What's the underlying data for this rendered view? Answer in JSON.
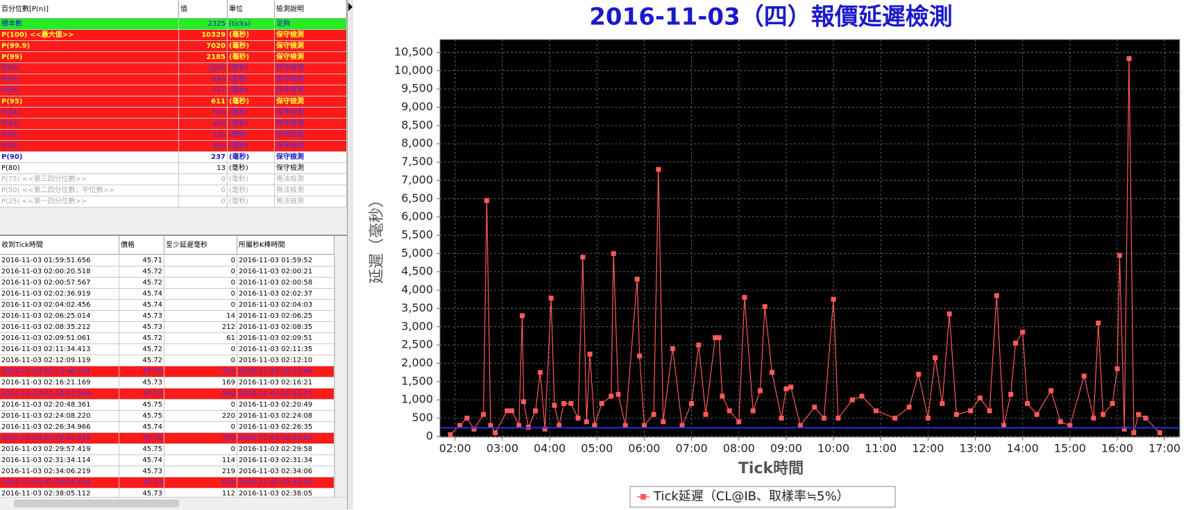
{
  "percentile_table": {
    "header": [
      "百分位數[P(n)]",
      "值",
      "單位",
      "檢測說明"
    ],
    "rows": [
      [
        "標本數",
        2325,
        "(ticks)",
        "足夠"
      ],
      [
        "P(100) <<最大值>>",
        10329,
        "(毫秒)",
        "保守檢測"
      ],
      [
        "P(99.9)",
        7020,
        "(毫秒)",
        "保守檢測"
      ],
      [
        "P(99)",
        2185,
        "(毫秒)",
        "保守檢測"
      ],
      [
        "P(98)",
        1007,
        "(毫秒)",
        "保守檢測"
      ],
      [
        "P(97)",
        843,
        "(毫秒)",
        "保守檢測"
      ],
      [
        "P(96)",
        727,
        "(毫秒)",
        "保守檢測"
      ],
      [
        "P(95)",
        611,
        "(毫秒)",
        "保守檢測"
      ],
      [
        "P(94)",
        505,
        "(毫秒)",
        "保守檢測"
      ],
      [
        "P(93)",
        400,
        "(毫秒)",
        "保守檢測"
      ],
      [
        "P(92)",
        326,
        "(毫秒)",
        "保守檢測"
      ],
      [
        "P(91)",
        263,
        "(毫秒)",
        "保守檢測"
      ],
      [
        "P(90)",
        237,
        "(毫秒)",
        "保守檢測"
      ],
      [
        "P(80)",
        13,
        "(毫秒)",
        "保守檢測"
      ],
      [
        "P(75) <<第三四分位數>>",
        0,
        "(毫秒)",
        "無法檢測"
      ],
      [
        "P(50) <<第二四分位數；中位數>>",
        0,
        "(毫秒)",
        "無法檢測"
      ],
      [
        "P(25) <<第一四分位數>>",
        0,
        "(毫秒)",
        "無法檢測"
      ]
    ],
    "row_styles": [
      "green",
      "red-yellow",
      "red-yellow",
      "red-yellow",
      "red-blue",
      "red-blue",
      "red-blue",
      "red-yellow",
      "red-blue",
      "red-blue",
      "red-blue",
      "red-blue",
      "white-blue",
      "white-black",
      "white-gray",
      "white-gray",
      "white-gray"
    ]
  },
  "tick_table": {
    "header": [
      "收到Tick時間",
      "價格",
      "至少延遲毫秒",
      "所屬秒K棒時間"
    ],
    "rows": [
      [
        "2016-11-03 01:59:51.656",
        45.71,
        0,
        "2016-11-03 01:59:52"
      ],
      [
        "2016-11-03 02:00:20.518",
        45.72,
        0,
        "2016-11-03 02:00:21"
      ],
      [
        "2016-11-03 02:00:57.567",
        45.72,
        0,
        "2016-11-03 02:00:58"
      ],
      [
        "2016-11-03 02:02:36.919",
        45.74,
        0,
        "2016-11-03 02:02:37"
      ],
      [
        "2016-11-03 02:04:02.456",
        45.74,
        0,
        "2016-11-03 02:04:03"
      ],
      [
        "2016-11-03 02:06:25.014",
        45.73,
        14,
        "2016-11-03 02:06:25"
      ],
      [
        "2016-11-03 02:08:35.212",
        45.73,
        212,
        "2016-11-03 02:08:35"
      ],
      [
        "2016-11-03 02:09:51.061",
        45.72,
        61,
        "2016-11-03 02:09:51"
      ],
      [
        "2016-11-03 02:11:34.413",
        45.72,
        0,
        "2016-11-03 02:11:35"
      ],
      [
        "2016-11-03 02:12:09.119",
        45.72,
        0,
        "2016-11-03 02:12:10"
      ],
      [
        "2016-11-03 02:13:46.314",
        45.75,
        314,
        "2016-11-03 02:13:46"
      ],
      [
        "2016-11-03 02:16:21.169",
        45.73,
        169,
        "2016-11-03 02:16:21"
      ],
      [
        "2016-11-03 02:18:23.569",
        45.75,
        569,
        "2016-11-03 02:18:23"
      ],
      [
        "2016-11-03 02:20:48.361",
        45.75,
        0,
        "2016-11-03 02:20:49"
      ],
      [
        "2016-11-03 02:24:08.220",
        45.75,
        220,
        "2016-11-03 02:24:08"
      ],
      [
        "2016-11-03 02:26:34.966",
        45.74,
        0,
        "2016-11-03 02:26:35"
      ],
      [
        "2016-11-03 02:28:41.319",
        45.75,
        319,
        "2016-11-03 02:28:41"
      ],
      [
        "2016-11-03 02:29:57.419",
        45.75,
        0,
        "2016-11-03 02:29:58"
      ],
      [
        "2016-11-03 02:31:34.114",
        45.74,
        114,
        "2016-11-03 02:31:34"
      ],
      [
        "2016-11-03 02:34:06.219",
        45.73,
        219,
        "2016-11-03 02:34:06"
      ],
      [
        "2016-11-03 02:35:56.618",
        45.73,
        618,
        "2016-11-03 02:35:56"
      ],
      [
        "2016-11-03 02:38:05.112",
        45.73,
        112,
        "2016-11-03 02:38:05"
      ]
    ],
    "highlighted_rows": [
      10,
      12,
      16,
      20
    ]
  },
  "chart_data": {
    "type": "line",
    "title": "2016-11-03（四）報價延遲檢測",
    "x_label": "Tick時間",
    "y_label": "延遲（毫秒）",
    "xlim": [
      1.68,
      17.32
    ],
    "xticks": [
      {
        "value": 2,
        "label": "02:00"
      },
      {
        "value": 3,
        "label": "03:00"
      },
      {
        "value": 4,
        "label": "04:00"
      },
      {
        "value": 5,
        "label": "05:00"
      },
      {
        "value": 6,
        "label": "06:00"
      },
      {
        "value": 7,
        "label": "07:00"
      },
      {
        "value": 8,
        "label": "08:00"
      },
      {
        "value": 9,
        "label": "09:00"
      },
      {
        "value": 10,
        "label": "10:00"
      },
      {
        "value": 11,
        "label": "11:00"
      },
      {
        "value": 12,
        "label": "12:00"
      },
      {
        "value": 13,
        "label": "13:00"
      },
      {
        "value": 14,
        "label": "14:00"
      },
      {
        "value": 15,
        "label": "15:00"
      },
      {
        "value": 16,
        "label": "16:00"
      },
      {
        "value": 17,
        "label": "17:00"
      }
    ],
    "ylim": [
      -20,
      10850
    ],
    "yticks": [
      0,
      500,
      {
        "value": 1000,
        "label": "1,000"
      },
      {
        "value": 1500,
        "label": "1,500"
      },
      {
        "value": 2000,
        "label": "2,000"
      },
      {
        "value": 2500,
        "label": "2,500"
      },
      {
        "value": 3000,
        "label": "3,000"
      },
      {
        "value": 3500,
        "label": "3,500"
      },
      {
        "value": 4000,
        "label": "4,000"
      },
      {
        "value": 4500,
        "label": "4,500"
      },
      {
        "value": 5000,
        "label": "5,000"
      },
      {
        "value": 5500,
        "label": "5,500"
      },
      {
        "value": 6000,
        "label": "6,000"
      },
      {
        "value": 6500,
        "label": "6,500"
      },
      {
        "value": 7000,
        "label": "7,000"
      },
      {
        "value": 7500,
        "label": "7,500"
      },
      {
        "value": 8000,
        "label": "8,000"
      },
      {
        "value": 8500,
        "label": "8,500"
      },
      {
        "value": 9000,
        "label": "9,000"
      },
      {
        "value": 9500,
        "label": "9,500"
      },
      {
        "value": 10000,
        "label": "10,000"
      },
      {
        "value": 10500,
        "label": "10,500"
      }
    ],
    "grid": true,
    "reference_line": {
      "value": 237,
      "color": "#2233dd"
    },
    "x": [
      1.9,
      2.1,
      2.25,
      2.4,
      2.6,
      2.67,
      2.75,
      2.85,
      3.1,
      3.2,
      3.35,
      3.42,
      3.45,
      3.55,
      3.7,
      3.8,
      3.9,
      4.03,
      4.1,
      4.2,
      4.3,
      4.45,
      4.6,
      4.7,
      4.78,
      4.85,
      4.95,
      5.1,
      5.3,
      5.35,
      5.45,
      5.6,
      5.85,
      5.9,
      6.0,
      6.2,
      6.3,
      6.4,
      6.6,
      6.8,
      7.0,
      7.15,
      7.3,
      7.5,
      7.58,
      7.65,
      7.8,
      8.0,
      8.12,
      8.3,
      8.45,
      8.55,
      8.7,
      8.9,
      9.0,
      9.1,
      9.3,
      9.6,
      9.8,
      10.0,
      10.1,
      10.4,
      10.6,
      10.9,
      11.3,
      11.6,
      11.8,
      12.0,
      12.15,
      12.3,
      12.45,
      12.6,
      12.9,
      13.1,
      13.3,
      13.45,
      13.6,
      13.75,
      13.85,
      14.0,
      14.1,
      14.3,
      14.6,
      14.8,
      15.0,
      15.3,
      15.5,
      15.6,
      15.7,
      15.9,
      16.0,
      16.05,
      16.15,
      16.25,
      16.35,
      16.45,
      16.6,
      16.9
    ],
    "series": [
      {
        "name": "Tick延遲（CL@IB、取樣率≒5%）",
        "color": "#ff5a5a",
        "values": [
          50,
          300,
          500,
          200,
          600,
          6450,
          300,
          100,
          700,
          700,
          300,
          3300,
          950,
          250,
          700,
          1750,
          200,
          3780,
          850,
          300,
          900,
          900,
          500,
          4900,
          400,
          2250,
          300,
          900,
          1100,
          5000,
          1150,
          300,
          4300,
          2200,
          300,
          600,
          7300,
          400,
          2400,
          300,
          900,
          2500,
          600,
          2700,
          2700,
          1100,
          700,
          400,
          3800,
          700,
          1250,
          3550,
          1750,
          500,
          1300,
          1350,
          300,
          800,
          500,
          3750,
          500,
          1000,
          1100,
          700,
          500,
          800,
          1700,
          500,
          2150,
          900,
          3350,
          600,
          700,
          1050,
          700,
          3850,
          300,
          1150,
          2550,
          2850,
          900,
          600,
          1250,
          400,
          300,
          1650,
          500,
          3100,
          600,
          900,
          1850,
          4950,
          200,
          10329,
          100,
          600,
          500,
          100
        ]
      }
    ]
  }
}
